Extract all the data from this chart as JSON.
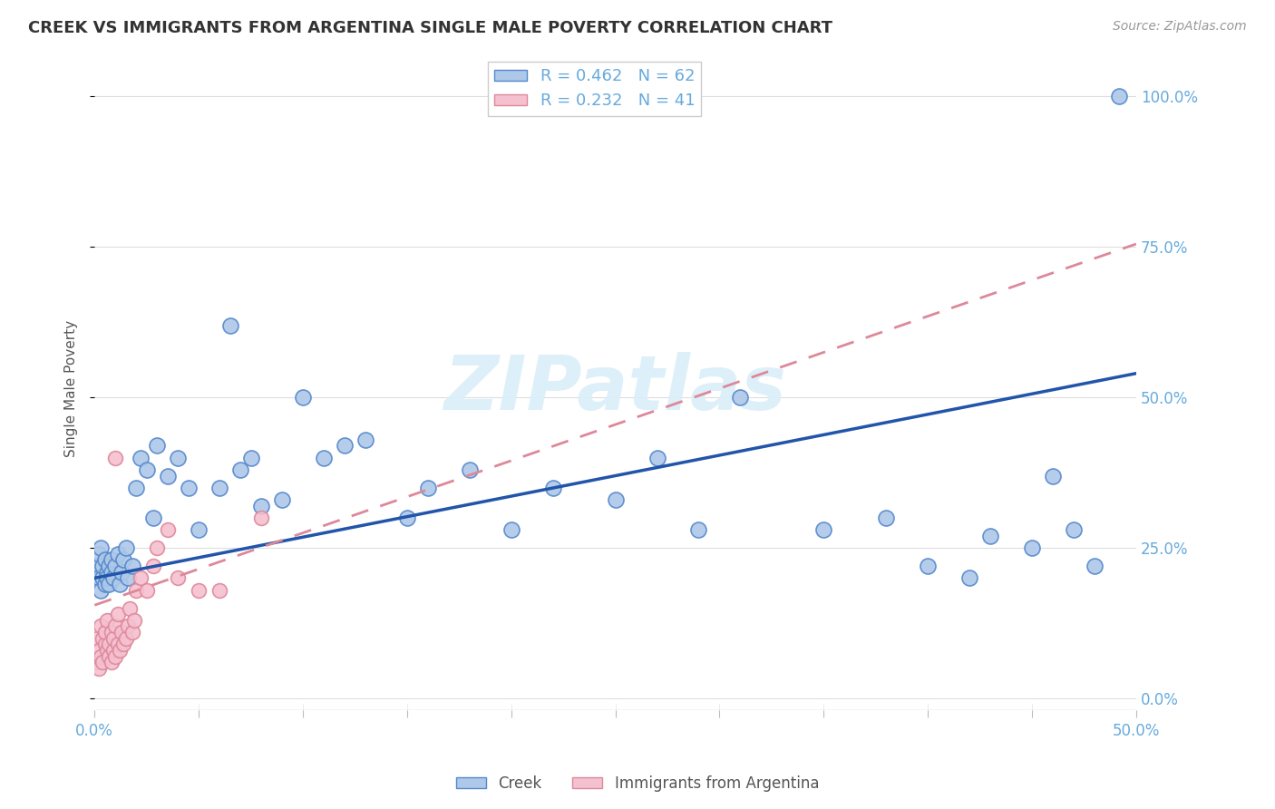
{
  "title": "CREEK VS IMMIGRANTS FROM ARGENTINA SINGLE MALE POVERTY CORRELATION CHART",
  "source": "Source: ZipAtlas.com",
  "ylabel": "Single Male Poverty",
  "creek_R": "0.462",
  "creek_N": "62",
  "arg_R": "0.232",
  "arg_N": "41",
  "creek_color": "#adc8e8",
  "creek_edge_color": "#5588cc",
  "creek_line_color": "#2255aa",
  "arg_color": "#f5c0d0",
  "arg_edge_color": "#dd8899",
  "arg_line_color": "#cc6677",
  "watermark_color": "#daeef8",
  "grid_color": "#dddddd",
  "axis_label_color": "#66aadd",
  "title_color": "#333333",
  "source_color": "#999999",
  "ylabel_color": "#555555",
  "xlim": [
    0.0,
    0.5
  ],
  "ylim": [
    -0.02,
    1.05
  ],
  "yticks": [
    0.0,
    0.25,
    0.5,
    0.75,
    1.0
  ],
  "ytick_labels": [
    "0.0%",
    "25.0%",
    "50.0%",
    "75.0%",
    "100.0%"
  ],
  "xtick_positions": [
    0.0,
    0.05,
    0.1,
    0.15,
    0.2,
    0.25,
    0.3,
    0.35,
    0.4,
    0.45,
    0.5
  ],
  "creek_slope": 0.68,
  "creek_intercept": 0.2,
  "arg_slope": 1.2,
  "arg_intercept": 0.155,
  "creek_x": [
    0.001,
    0.002,
    0.002,
    0.003,
    0.003,
    0.004,
    0.004,
    0.005,
    0.005,
    0.006,
    0.006,
    0.007,
    0.007,
    0.008,
    0.008,
    0.009,
    0.01,
    0.011,
    0.012,
    0.013,
    0.014,
    0.015,
    0.016,
    0.018,
    0.02,
    0.022,
    0.025,
    0.028,
    0.03,
    0.035,
    0.04,
    0.045,
    0.05,
    0.06,
    0.065,
    0.07,
    0.075,
    0.08,
    0.09,
    0.1,
    0.11,
    0.12,
    0.13,
    0.15,
    0.16,
    0.18,
    0.2,
    0.22,
    0.25,
    0.27,
    0.29,
    0.31,
    0.35,
    0.38,
    0.4,
    0.42,
    0.43,
    0.45,
    0.46,
    0.47,
    0.48,
    0.492
  ],
  "creek_y": [
    0.22,
    0.2,
    0.24,
    0.18,
    0.25,
    0.2,
    0.22,
    0.19,
    0.23,
    0.21,
    0.2,
    0.22,
    0.19,
    0.21,
    0.23,
    0.2,
    0.22,
    0.24,
    0.19,
    0.21,
    0.23,
    0.25,
    0.2,
    0.22,
    0.35,
    0.4,
    0.38,
    0.3,
    0.42,
    0.37,
    0.4,
    0.35,
    0.28,
    0.35,
    0.62,
    0.38,
    0.4,
    0.32,
    0.33,
    0.5,
    0.4,
    0.42,
    0.43,
    0.3,
    0.35,
    0.38,
    0.28,
    0.35,
    0.33,
    0.4,
    0.28,
    0.5,
    0.28,
    0.3,
    0.22,
    0.2,
    0.27,
    0.25,
    0.37,
    0.28,
    0.22,
    1.0
  ],
  "arg_x": [
    0.001,
    0.001,
    0.002,
    0.002,
    0.003,
    0.003,
    0.004,
    0.004,
    0.005,
    0.005,
    0.006,
    0.006,
    0.007,
    0.007,
    0.008,
    0.008,
    0.009,
    0.009,
    0.01,
    0.01,
    0.011,
    0.011,
    0.012,
    0.013,
    0.014,
    0.015,
    0.016,
    0.017,
    0.018,
    0.019,
    0.02,
    0.022,
    0.025,
    0.028,
    0.03,
    0.035,
    0.04,
    0.05,
    0.06,
    0.08,
    0.01
  ],
  "arg_y": [
    0.06,
    0.1,
    0.08,
    0.05,
    0.12,
    0.07,
    0.1,
    0.06,
    0.09,
    0.11,
    0.08,
    0.13,
    0.07,
    0.09,
    0.11,
    0.06,
    0.08,
    0.1,
    0.12,
    0.07,
    0.09,
    0.14,
    0.08,
    0.11,
    0.09,
    0.1,
    0.12,
    0.15,
    0.11,
    0.13,
    0.18,
    0.2,
    0.18,
    0.22,
    0.25,
    0.28,
    0.2,
    0.18,
    0.18,
    0.3,
    0.4
  ]
}
